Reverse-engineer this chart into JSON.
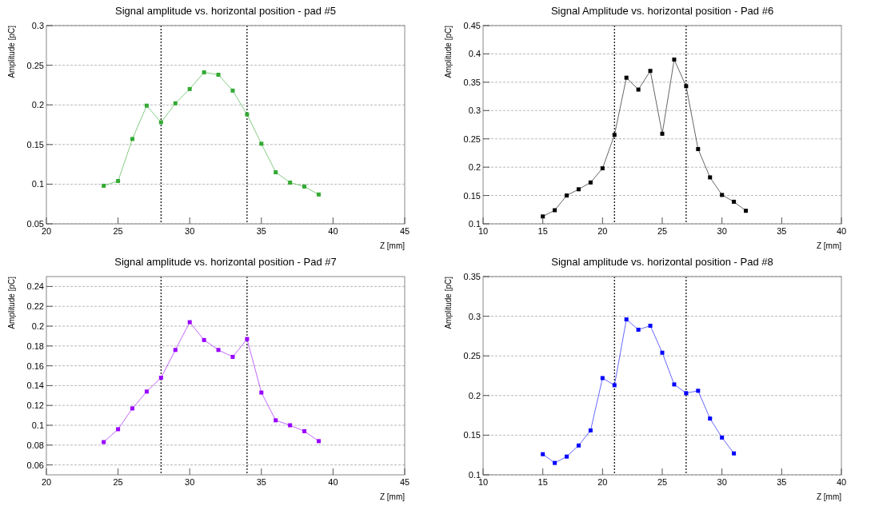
{
  "chart_data": [
    {
      "type": "line",
      "title": "Signal amplitude vs. horizontal position - pad #5",
      "xlabel": "Z [mm]",
      "ylabel": "Amplitude [pC]",
      "x": [
        24,
        25,
        26,
        27,
        28,
        29,
        30,
        31,
        32,
        33,
        34,
        35,
        36,
        37,
        38,
        39
      ],
      "series": [
        {
          "color": "#33aa33",
          "values": [
            0.098,
            0.104,
            0.157,
            0.199,
            0.178,
            0.202,
            0.22,
            0.241,
            0.238,
            0.218,
            0.188,
            0.151,
            0.115,
            0.102,
            0.097,
            0.087
          ]
        }
      ],
      "xlim": [
        20,
        45
      ],
      "xticks": [
        20,
        25,
        30,
        35,
        40,
        45
      ],
      "ylim": [
        0.05,
        0.3
      ],
      "yticks": [
        0.05,
        0.1,
        0.15,
        0.2,
        0.25,
        0.3
      ],
      "grid": "y",
      "marker": "square",
      "line_style": "solid",
      "ref_lines": [
        {
          "axis": "x",
          "value": 28,
          "color": "#000000",
          "line_style": "dotted"
        },
        {
          "axis": "x",
          "value": 34,
          "color": "#000000",
          "line_style": "dotted"
        }
      ]
    },
    {
      "type": "line",
      "title": "Signal Amplitude vs. horizontal position - Pad #6",
      "xlabel": "Z [mm]",
      "ylabel": "Amplitude [pC]",
      "x": [
        15,
        16,
        17,
        18,
        19,
        20,
        21,
        22,
        23,
        24,
        25,
        26,
        27,
        28,
        29,
        30,
        31,
        32
      ],
      "series": [
        {
          "color": "#000000",
          "values": [
            0.113,
            0.124,
            0.15,
            0.161,
            0.173,
            0.198,
            0.257,
            0.358,
            0.337,
            0.37,
            0.259,
            0.39,
            0.343,
            0.232,
            0.182,
            0.151,
            0.139,
            0.123
          ]
        }
      ],
      "xlim": [
        10,
        40
      ],
      "xticks": [
        10,
        15,
        20,
        25,
        30,
        35,
        40
      ],
      "ylim": [
        0.1,
        0.45
      ],
      "yticks": [
        0.1,
        0.15,
        0.2,
        0.25,
        0.3,
        0.35,
        0.4,
        0.45
      ],
      "grid": "y",
      "marker": "square",
      "line_style": "solid",
      "ref_lines": [
        {
          "axis": "x",
          "value": 21,
          "color": "#000000",
          "line_style": "dotted"
        },
        {
          "axis": "x",
          "value": 27,
          "color": "#000000",
          "line_style": "dotted"
        }
      ]
    },
    {
      "type": "line",
      "title": "Signal amplitude vs. horizontal position - Pad #7",
      "xlabel": "Z [mm]",
      "ylabel": "Amplitude [pC]",
      "x": [
        24,
        25,
        26,
        27,
        28,
        29,
        30,
        31,
        32,
        33,
        34,
        35,
        36,
        37,
        38,
        39
      ],
      "series": [
        {
          "color": "#9900ff",
          "values": [
            0.083,
            0.096,
            0.117,
            0.134,
            0.148,
            0.176,
            0.204,
            0.186,
            0.176,
            0.169,
            0.187,
            0.133,
            0.105,
            0.1,
            0.094,
            0.084
          ]
        }
      ],
      "xlim": [
        20,
        45
      ],
      "xticks": [
        20,
        25,
        30,
        35,
        40,
        45
      ],
      "ylim": [
        0.05,
        0.25
      ],
      "yticks": [
        0.06,
        0.08,
        0.1,
        0.12,
        0.14,
        0.16,
        0.18,
        0.2,
        0.22,
        0.24
      ],
      "grid": "y",
      "marker": "square",
      "line_style": "solid",
      "ref_lines": [
        {
          "axis": "x",
          "value": 28,
          "color": "#000000",
          "line_style": "dotted"
        },
        {
          "axis": "x",
          "value": 34,
          "color": "#000000",
          "line_style": "dotted"
        }
      ]
    },
    {
      "type": "line",
      "title": "Signal amplitude vs. horizontal position - Pad #8",
      "xlabel": "Z [mm]",
      "ylabel": "Amplitude [pC]",
      "x": [
        15,
        16,
        17,
        18,
        19,
        20,
        21,
        22,
        23,
        24,
        25,
        26,
        27,
        28,
        29,
        30,
        31
      ],
      "series": [
        {
          "color": "#0000ff",
          "values": [
            0.126,
            0.115,
            0.123,
            0.137,
            0.156,
            0.222,
            0.213,
            0.296,
            0.283,
            0.288,
            0.254,
            0.214,
            0.203,
            0.206,
            0.171,
            0.147,
            0.127
          ]
        }
      ],
      "xlim": [
        10,
        40
      ],
      "xticks": [
        10,
        15,
        20,
        25,
        30,
        35,
        40
      ],
      "ylim": [
        0.1,
        0.35
      ],
      "yticks": [
        0.1,
        0.15,
        0.2,
        0.25,
        0.3,
        0.35
      ],
      "grid": "y",
      "marker": "square",
      "line_style": "solid",
      "ref_lines": [
        {
          "axis": "x",
          "value": 21,
          "color": "#000000",
          "line_style": "dotted"
        },
        {
          "axis": "x",
          "value": 27,
          "color": "#000000",
          "line_style": "dotted"
        }
      ]
    }
  ]
}
